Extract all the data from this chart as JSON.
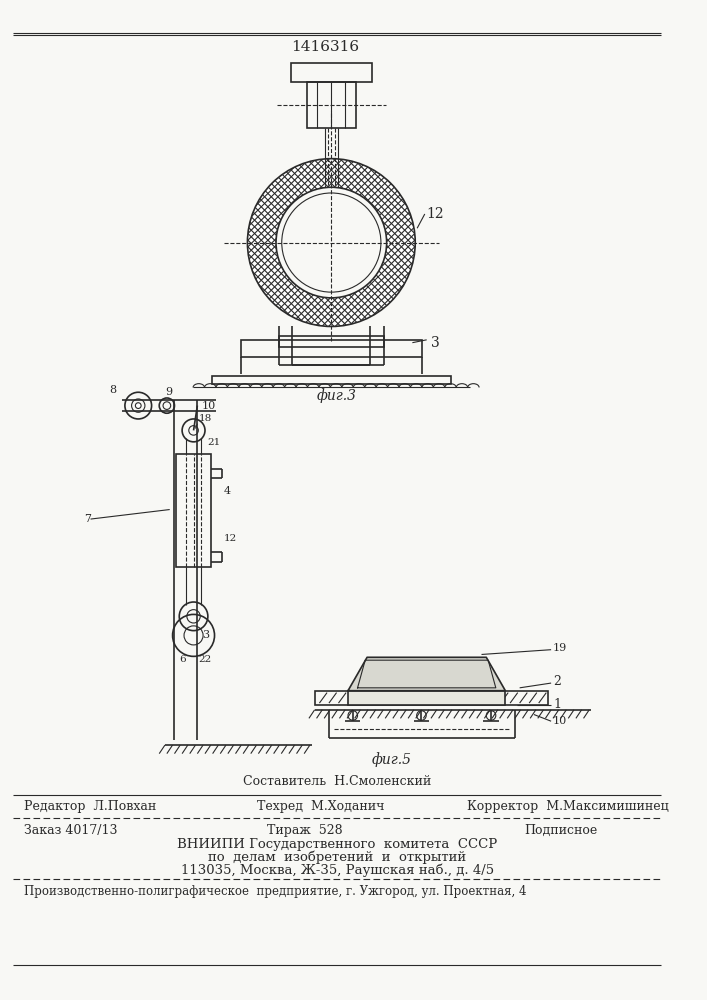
{
  "patent_number": "1416316",
  "bg_color": "#f8f8f5",
  "line_color": "#2a2a2a",
  "fig3_label": "фиг.3",
  "fig5_label": "фиг.5",
  "credit_line": "Составитель  Н.Смоленский",
  "editor_line": "Редактор  Л.Повхан",
  "techred_line": "Техред  М.Ходанич",
  "corrector_line": "Корректор  М.Максимишинец",
  "order_line": "Заказ 4017/13",
  "tirazh_line": "Тираж  528",
  "podpisnoe_line": "Подписное",
  "vniip_line1": "ВНИИПИ Государственного  комитета  СССР",
  "vniip_line2": "по  делам  изобретений  и  открытий",
  "vniip_line3": "113035, Москва, Ж-35, Раушская наб., д. 4/5",
  "plant_line": "Производственно-полиграфическое  предприятие, г. Ужгород, ул. Проектная, 4"
}
